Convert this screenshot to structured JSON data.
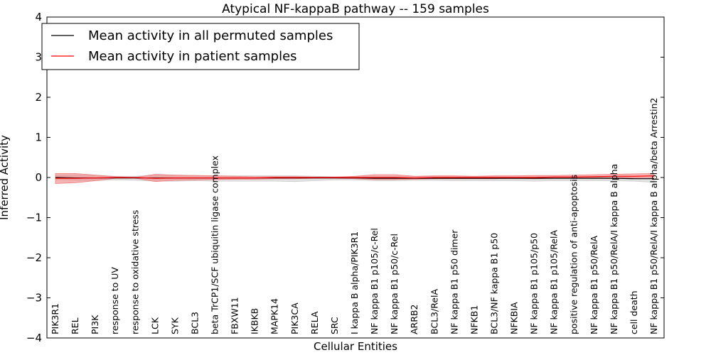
{
  "chart_data": {
    "type": "line",
    "title": "Atypical NF-kappaB pathway -- 159 samples",
    "xlabel": "Cellular Entities",
    "ylabel": "Inferred Activity",
    "ylim": [
      -4,
      4
    ],
    "yticks": [
      "−4",
      "−3",
      "−2",
      "−1",
      "0",
      "1",
      "2",
      "3",
      "4"
    ],
    "categories": [
      "PIK3R1",
      "REL",
      "PI3K",
      "response to UV",
      "response to oxidative stress",
      "LCK",
      "SYK",
      "BCL3",
      "beta TrCP1/SCF ubiquitin ligase complex",
      "FBXW11",
      "IKBKB",
      "MAPK14",
      "PIK3CA",
      "RELA",
      "SRC",
      "I kappa B alpha/PIK3R1",
      "NF kappa B1 p105/c-Rel",
      "NF kappa B1 p50/c-Rel",
      "ARRB2",
      "BCL3/RelA",
      "NF kappa B1 p50 dimer",
      "NFKB1",
      "BCL3/NF kappa B1 p50",
      "NFKBIA",
      "NF kappa B1 p105/p50",
      "NF kappa B1 p105/RelA",
      "positive regulation of anti-apoptosis",
      "NF kappa B1 p50/RelA",
      "NF kappa B1 p50/RelA/I kappa B alpha",
      "cell death",
      "NF kappa B1 p50/RelA/I kappa B alpha/beta Arrestin2"
    ],
    "series": [
      {
        "name": "Mean activity in all permuted samples",
        "color": "#000000",
        "values": [
          0.0,
          -0.01,
          -0.01,
          -0.01,
          -0.01,
          -0.01,
          -0.01,
          -0.01,
          -0.01,
          -0.01,
          -0.01,
          -0.01,
          -0.01,
          -0.01,
          -0.01,
          -0.01,
          -0.02,
          -0.02,
          -0.02,
          -0.02,
          -0.02,
          -0.02,
          -0.02,
          -0.02,
          -0.02,
          -0.02,
          -0.02,
          -0.02,
          -0.02,
          -0.03,
          -0.03
        ],
        "band_upper": [
          0.05,
          0.06,
          0.06,
          0.03,
          0.03,
          0.06,
          0.06,
          0.05,
          0.04,
          0.04,
          0.04,
          0.04,
          0.04,
          0.03,
          0.02,
          0.02,
          0.02,
          0.02,
          0.02,
          0.02,
          0.02,
          0.02,
          0.02,
          0.01,
          0.01,
          0.01,
          0.01,
          0.01,
          0.0,
          0.0,
          -0.01
        ],
        "band_lower": [
          -0.05,
          -0.07,
          -0.08,
          -0.06,
          -0.07,
          -0.09,
          -0.09,
          -0.08,
          -0.09,
          -0.09,
          -0.09,
          -0.09,
          -0.1,
          -0.08,
          -0.06,
          -0.06,
          -0.08,
          -0.08,
          -0.07,
          -0.07,
          -0.08,
          -0.08,
          -0.08,
          -0.08,
          -0.09,
          -0.08,
          -0.08,
          -0.08,
          -0.08,
          -0.09,
          -0.12
        ],
        "band_color": "#cccccc"
      },
      {
        "name": "Mean activity in patient samples",
        "color": "#ff0000",
        "values": [
          -0.02,
          -0.02,
          -0.01,
          0.0,
          0.0,
          -0.02,
          -0.01,
          -0.01,
          -0.01,
          -0.01,
          -0.01,
          0.0,
          0.0,
          0.0,
          0.0,
          0.0,
          0.0,
          0.0,
          -0.01,
          0.0,
          0.0,
          0.0,
          0.0,
          0.0,
          0.0,
          0.01,
          0.01,
          0.02,
          0.03,
          0.03,
          0.04
        ],
        "band_upper": [
          0.1,
          0.1,
          0.06,
          0.02,
          0.0,
          0.08,
          0.06,
          0.05,
          0.04,
          0.03,
          0.02,
          0.02,
          0.02,
          0.01,
          0.01,
          0.03,
          0.07,
          0.07,
          0.03,
          0.04,
          0.04,
          0.03,
          0.04,
          0.04,
          0.05,
          0.05,
          0.06,
          0.07,
          0.08,
          0.09,
          0.1
        ],
        "band_lower": [
          -0.15,
          -0.13,
          -0.08,
          -0.02,
          -0.02,
          -0.1,
          -0.07,
          -0.06,
          -0.05,
          -0.04,
          -0.04,
          -0.03,
          -0.03,
          -0.02,
          -0.02,
          -0.03,
          -0.05,
          -0.05,
          -0.04,
          -0.03,
          -0.03,
          -0.03,
          -0.03,
          -0.02,
          -0.03,
          -0.02,
          -0.02,
          -0.01,
          -0.01,
          -0.01,
          0.0
        ],
        "band_color": "#f08080"
      }
    ],
    "legend": {
      "position": "top-left",
      "entries": [
        "Mean activity in all permuted samples",
        "Mean activity in patient samples"
      ]
    },
    "grid": false
  }
}
